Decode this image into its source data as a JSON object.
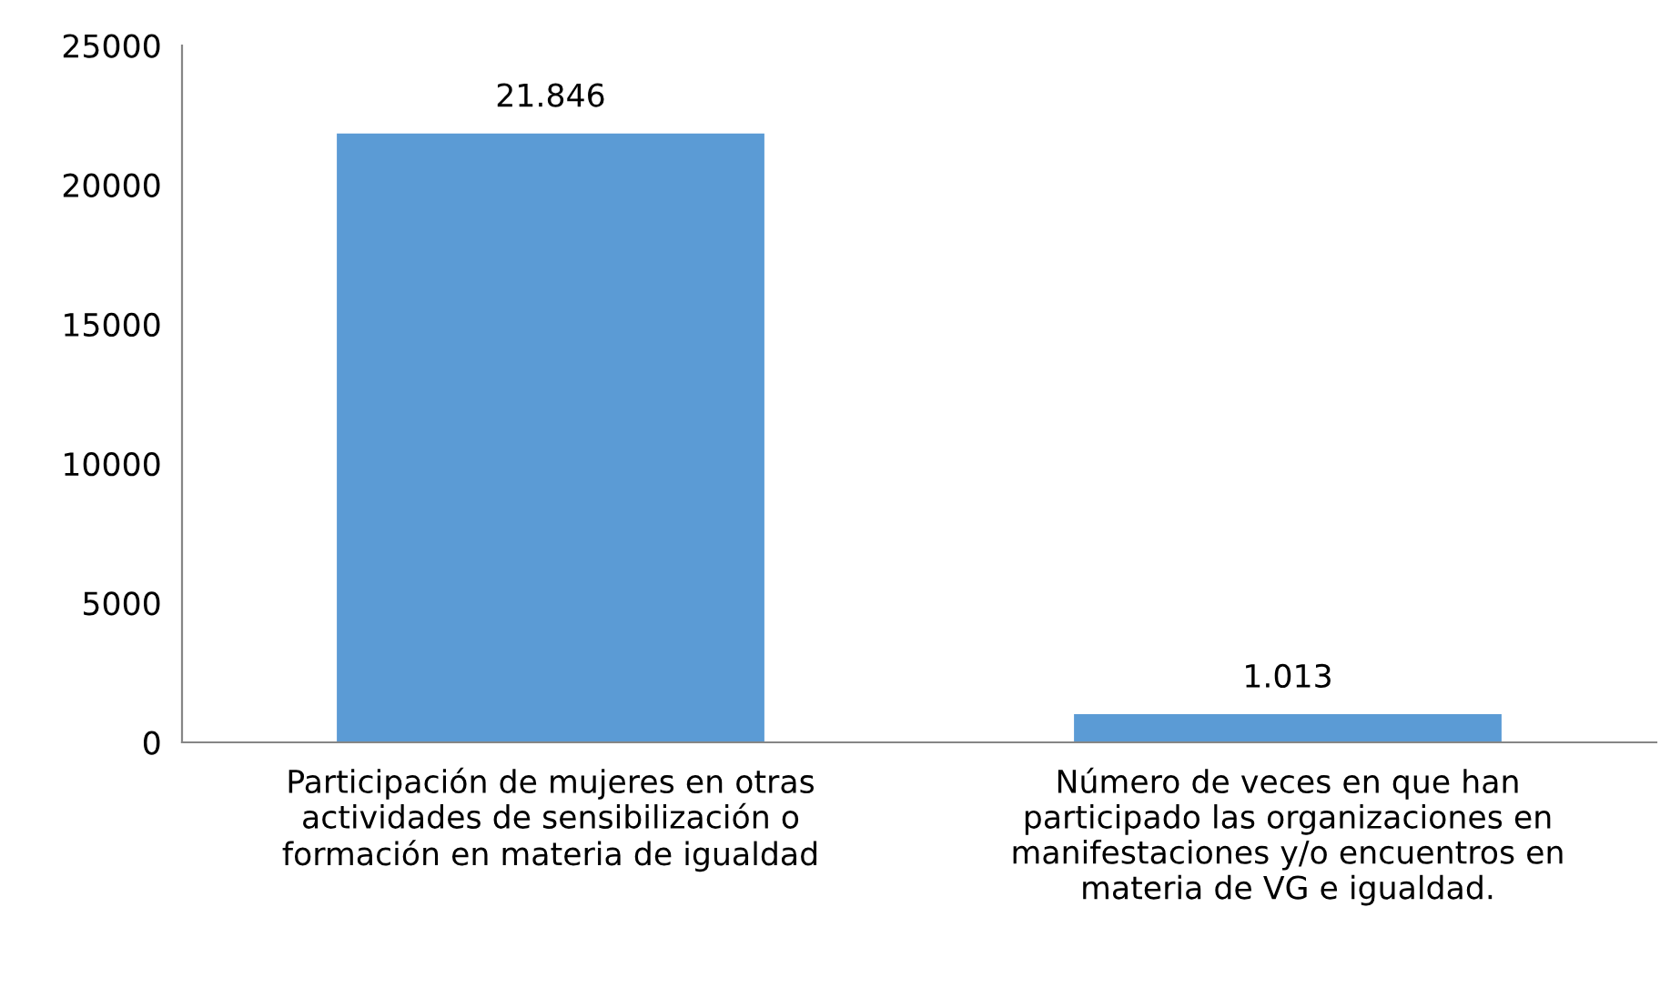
{
  "chart_data": {
    "type": "bar",
    "categories": [
      "Participación de mujeres en otras\nactividades de sensibilización o\nformación en materia de igualdad",
      "Número de veces en que han\nparticipado las organizaciones en\nmanifestaciones y/o encuentros en\nmateria de VG e igualdad."
    ],
    "values": [
      21846,
      1013
    ],
    "value_labels": [
      "21.846",
      "1.013"
    ],
    "color": "#5b9bd5",
    "ylim": [
      0,
      25000
    ],
    "yticks": [
      0,
      5000,
      10000,
      15000,
      20000,
      25000
    ],
    "grid": false,
    "legend": false
  }
}
